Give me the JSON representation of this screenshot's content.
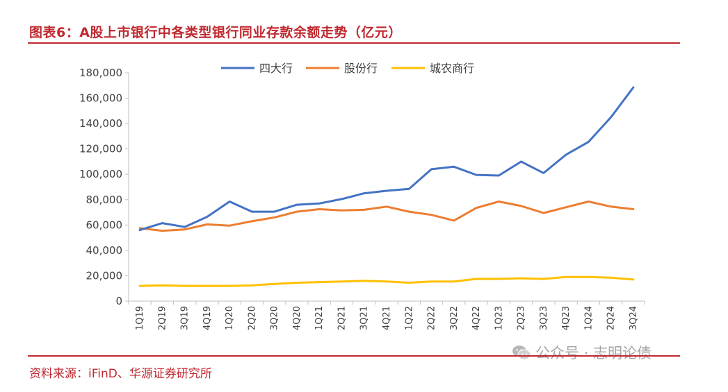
{
  "header": {
    "title": "图表6：A股上市银行中各类型银行同业存款余额走势（亿元）"
  },
  "footer": {
    "source": "资料来源：iFinD、华源证券研究所"
  },
  "watermark": {
    "text": "公众号 · 志明论债",
    "icon": "wechat-icon"
  },
  "chart_data": {
    "type": "line",
    "title": "",
    "xlabel": "",
    "ylabel": "",
    "ylim": [
      0,
      180000
    ],
    "yticks": [
      0,
      20000,
      40000,
      60000,
      80000,
      100000,
      120000,
      140000,
      160000,
      180000
    ],
    "ytick_labels": [
      "0",
      "20,000",
      "40,000",
      "60,000",
      "80,000",
      "100,000",
      "120,000",
      "140,000",
      "160,000",
      "180,000"
    ],
    "grid": false,
    "legend_position": "top",
    "categories": [
      "1Q19",
      "2Q19",
      "3Q19",
      "4Q19",
      "1Q20",
      "2Q20",
      "3Q20",
      "4Q20",
      "1Q21",
      "2Q21",
      "3Q21",
      "4Q21",
      "1Q22",
      "2Q22",
      "3Q22",
      "4Q22",
      "1Q23",
      "2Q23",
      "3Q23",
      "4Q23",
      "1Q24",
      "2Q24",
      "3Q24"
    ],
    "series": [
      {
        "name": "四大行",
        "color": "#4472c4",
        "values": [
          56000,
          61500,
          58500,
          66500,
          78500,
          70500,
          70500,
          76000,
          77000,
          80500,
          85000,
          87000,
          88500,
          104000,
          106000,
          99500,
          99000,
          110000,
          101000,
          115500,
          125500,
          145000,
          168500
        ]
      },
      {
        "name": "股份行",
        "color": "#ed7d31",
        "values": [
          57500,
          55500,
          56500,
          60500,
          59500,
          63000,
          66000,
          70500,
          72500,
          71500,
          72000,
          74500,
          70500,
          68000,
          63500,
          73500,
          78500,
          75000,
          69500,
          74000,
          78500,
          74500,
          72500
        ]
      },
      {
        "name": "城农商行",
        "color": "#ffc000",
        "values": [
          12000,
          12500,
          12000,
          12000,
          12000,
          12500,
          13500,
          14500,
          15000,
          15500,
          16000,
          15500,
          14500,
          15500,
          15500,
          17500,
          17500,
          18000,
          17500,
          19000,
          19000,
          18500,
          17000
        ]
      }
    ]
  }
}
